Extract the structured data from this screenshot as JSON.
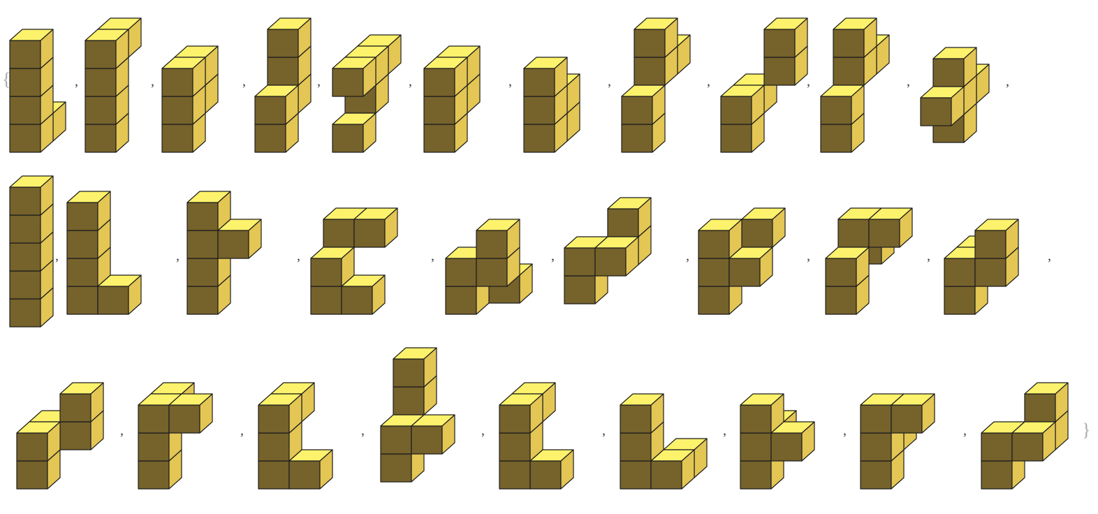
{
  "open_brace": "{",
  "separators": [
    ",",
    ",",
    ",",
    ",",
    ",",
    ",",
    ",",
    ",",
    ",",
    ",",
    ",",
    ",",
    ",",
    ",",
    ",",
    ",",
    ",",
    ",",
    ",",
    ",",
    ",",
    ",",
    ",",
    ",",
    ",",
    ",",
    ",",
    ","
  ],
  "close_brace": "}"
}
